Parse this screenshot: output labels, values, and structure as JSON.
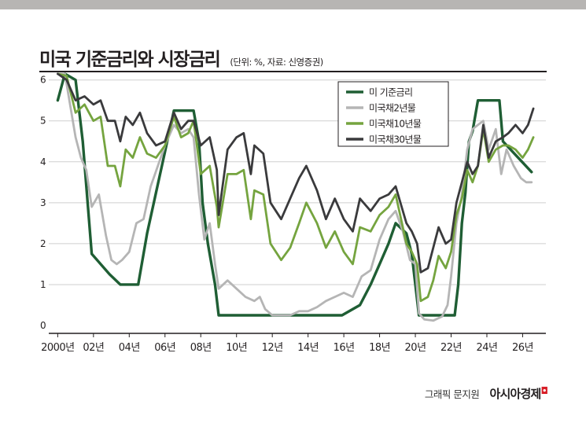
{
  "title": "미국 기준금리와 시장금리",
  "subtitle": "(단위: %, 자료: 신영증권)",
  "footer": {
    "credit": "그래픽 문지원",
    "brand": "아시아경제"
  },
  "colors": {
    "topbar": "#b7b5b3",
    "rule": "#231f20",
    "grid": "#cfcfcf",
    "axis": "#231f20",
    "policy": "#1f5e34",
    "y2": "#b5b5b5",
    "y10": "#75a43f",
    "y30": "#3a3a3c"
  },
  "chart_data": {
    "type": "line",
    "title": "미국 기준금리와 시장금리",
    "subtitle": "(단위: %, 자료: 신영증권)",
    "ylim": [
      0,
      6
    ],
    "yticks": [
      0,
      1,
      2,
      3,
      4,
      5,
      6
    ],
    "xlim": [
      1999.5,
      2027.3
    ],
    "x_ticks": [
      2000,
      2002,
      2004,
      2006,
      2008,
      2010,
      2012,
      2014,
      2016,
      2018,
      2020,
      2022,
      2024,
      2026
    ],
    "x_tick_labels": [
      "2000년",
      "02년",
      "04년",
      "06년",
      "08년",
      "10년",
      "12년",
      "14년",
      "16년",
      "18년",
      "20년",
      "22년",
      "24년",
      "26년"
    ],
    "grid": true,
    "legend_position": "top-right",
    "series": [
      {
        "name": "미 기준금리",
        "key": "policy",
        "x": [
          2000.0,
          2000.4,
          2001.0,
          2001.4,
          2001.9,
          2002.9,
          2003.5,
          2004.5,
          2005.0,
          2005.5,
          2006.0,
          2006.5,
          2007.6,
          2007.9,
          2008.1,
          2008.4,
          2008.8,
          2009.0,
          2015.9,
          2016.9,
          2017.5,
          2018.0,
          2018.5,
          2018.9,
          2019.5,
          2019.8,
          2020.2,
          2022.2,
          2022.4,
          2022.6,
          2022.8,
          2023.0,
          2023.2,
          2023.5,
          2024.7,
          2024.9,
          2026.5
        ],
        "y": [
          5.5,
          6.5,
          6.0,
          4.5,
          1.75,
          1.25,
          1.0,
          1.0,
          2.25,
          3.25,
          4.25,
          5.25,
          5.25,
          4.5,
          3.0,
          2.0,
          1.0,
          0.25,
          0.25,
          0.5,
          1.0,
          1.5,
          2.0,
          2.5,
          2.25,
          1.75,
          0.25,
          0.25,
          1.0,
          2.5,
          3.25,
          4.5,
          4.75,
          5.5,
          5.5,
          4.5,
          3.75
        ]
      },
      {
        "name": "미국채2년물",
        "key": "y2",
        "x": [
          2000.0,
          2000.4,
          2001.0,
          2001.3,
          2001.6,
          2001.9,
          2002.3,
          2002.7,
          2003.0,
          2003.3,
          2003.6,
          2004.0,
          2004.4,
          2004.8,
          2005.2,
          2005.6,
          2006.0,
          2006.5,
          2006.9,
          2007.3,
          2007.6,
          2007.9,
          2008.2,
          2008.5,
          2008.8,
          2009.0,
          2009.5,
          2010.0,
          2010.5,
          2011.0,
          2011.3,
          2011.6,
          2012.0,
          2013.0,
          2013.5,
          2014.0,
          2014.5,
          2015.0,
          2015.5,
          2016.0,
          2016.5,
          2017.0,
          2017.5,
          2018.0,
          2018.5,
          2018.9,
          2019.3,
          2019.7,
          2020.0,
          2020.2,
          2020.5,
          2021.0,
          2021.5,
          2021.8,
          2022.0,
          2022.3,
          2022.6,
          2022.9,
          2023.2,
          2023.5,
          2023.8,
          2024.1,
          2024.5,
          2024.8,
          2025.1,
          2025.5,
          2025.9,
          2026.2,
          2026.5
        ],
        "y": [
          6.3,
          6.6,
          4.6,
          4.1,
          3.8,
          2.9,
          3.2,
          2.2,
          1.6,
          1.5,
          1.6,
          1.8,
          2.5,
          2.6,
          3.4,
          3.9,
          4.4,
          4.9,
          4.7,
          4.8,
          4.6,
          3.2,
          2.1,
          2.5,
          1.5,
          0.9,
          1.1,
          0.9,
          0.7,
          0.6,
          0.7,
          0.4,
          0.25,
          0.25,
          0.35,
          0.35,
          0.45,
          0.6,
          0.7,
          0.8,
          0.7,
          1.2,
          1.35,
          2.1,
          2.6,
          2.8,
          2.3,
          1.6,
          1.5,
          0.3,
          0.15,
          0.12,
          0.22,
          0.5,
          1.2,
          2.5,
          3.2,
          4.3,
          4.8,
          4.9,
          5.0,
          4.3,
          4.8,
          3.7,
          4.3,
          3.9,
          3.6,
          3.5,
          3.5
        ]
      },
      {
        "name": "미국채10년물",
        "key": "y10",
        "x": [
          2000.0,
          2000.5,
          2001.0,
          2001.5,
          2002.0,
          2002.4,
          2002.8,
          2003.2,
          2003.5,
          2003.8,
          2004.2,
          2004.6,
          2005.0,
          2005.5,
          2006.0,
          2006.5,
          2006.9,
          2007.3,
          2007.6,
          2008.0,
          2008.5,
          2008.9,
          2009.0,
          2009.5,
          2010.0,
          2010.4,
          2010.8,
          2011.0,
          2011.5,
          2011.9,
          2012.5,
          2013.0,
          2013.5,
          2013.9,
          2014.5,
          2015.0,
          2015.5,
          2016.0,
          2016.5,
          2016.9,
          2017.5,
          2018.0,
          2018.5,
          2018.9,
          2019.5,
          2019.8,
          2020.1,
          2020.3,
          2020.7,
          2021.0,
          2021.3,
          2021.7,
          2022.0,
          2022.3,
          2022.6,
          2022.9,
          2023.2,
          2023.5,
          2023.8,
          2024.1,
          2024.5,
          2024.9,
          2025.2,
          2025.6,
          2026.0,
          2026.3,
          2026.6
        ],
        "y": [
          6.5,
          6.1,
          5.2,
          5.4,
          5.0,
          5.1,
          3.9,
          3.9,
          3.4,
          4.3,
          4.1,
          4.6,
          4.2,
          4.1,
          4.4,
          5.1,
          4.6,
          4.7,
          5.0,
          3.7,
          3.9,
          2.9,
          2.4,
          3.7,
          3.7,
          3.8,
          2.6,
          3.3,
          3.2,
          2.0,
          1.6,
          1.9,
          2.5,
          3.0,
          2.5,
          1.9,
          2.3,
          1.8,
          1.5,
          2.4,
          2.3,
          2.7,
          2.9,
          3.2,
          2.0,
          1.8,
          1.5,
          0.6,
          0.7,
          1.1,
          1.7,
          1.4,
          1.8,
          2.7,
          3.1,
          3.8,
          3.5,
          3.9,
          4.8,
          4.0,
          4.3,
          4.4,
          4.4,
          4.3,
          4.1,
          4.3,
          4.6
        ]
      },
      {
        "name": "미국채30년물",
        "key": "y30",
        "x": [
          2000.0,
          2000.5,
          2001.0,
          2001.5,
          2002.0,
          2002.4,
          2002.8,
          2003.2,
          2003.5,
          2003.8,
          2004.2,
          2004.6,
          2005.0,
          2005.5,
          2006.0,
          2006.5,
          2006.9,
          2007.3,
          2007.6,
          2008.0,
          2008.5,
          2008.9,
          2009.0,
          2009.5,
          2010.0,
          2010.4,
          2010.8,
          2011.0,
          2011.5,
          2011.9,
          2012.5,
          2013.0,
          2013.5,
          2013.9,
          2014.5,
          2015.0,
          2015.5,
          2016.0,
          2016.5,
          2016.9,
          2017.5,
          2018.0,
          2018.5,
          2018.9,
          2019.5,
          2019.8,
          2020.1,
          2020.3,
          2020.7,
          2021.0,
          2021.3,
          2021.7,
          2022.0,
          2022.3,
          2022.6,
          2022.9,
          2023.2,
          2023.5,
          2023.8,
          2024.1,
          2024.5,
          2024.9,
          2025.2,
          2025.6,
          2026.0,
          2026.3,
          2026.6
        ],
        "y": [
          6.5,
          6.0,
          5.5,
          5.6,
          5.4,
          5.5,
          5.0,
          5.0,
          4.5,
          5.1,
          4.9,
          5.2,
          4.7,
          4.4,
          4.5,
          5.2,
          4.8,
          5.0,
          5.0,
          4.4,
          4.6,
          3.8,
          2.7,
          4.3,
          4.6,
          4.7,
          3.7,
          4.4,
          4.2,
          3.0,
          2.6,
          3.1,
          3.6,
          3.9,
          3.3,
          2.6,
          3.1,
          2.6,
          2.3,
          3.1,
          2.8,
          3.1,
          3.2,
          3.4,
          2.5,
          2.3,
          2.0,
          1.3,
          1.4,
          1.9,
          2.4,
          2.0,
          2.1,
          3.0,
          3.5,
          4.0,
          3.7,
          3.9,
          4.9,
          4.1,
          4.5,
          4.6,
          4.7,
          4.9,
          4.7,
          4.9,
          5.3
        ]
      }
    ]
  }
}
